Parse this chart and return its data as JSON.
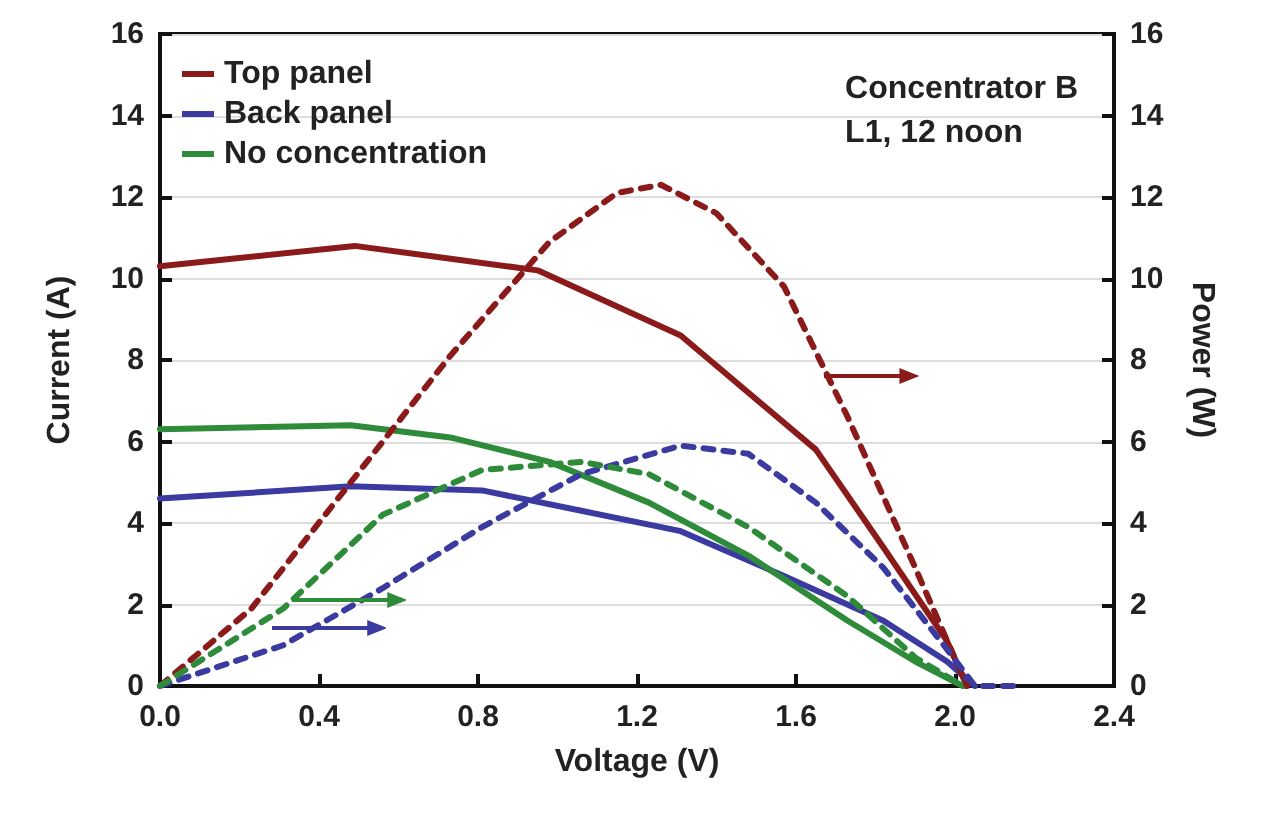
{
  "chart_data": {
    "type": "line",
    "xlabel": "Voltage (V)",
    "ylabel": "Current (A)",
    "y2label": "Power (W)",
    "annotations": [
      "Concentrator B",
      "L1, 12 noon"
    ],
    "xlim": [
      0,
      2.4
    ],
    "xticks": [
      {
        "value": 0,
        "label": "0.0"
      },
      {
        "value": 0.4,
        "label": "0.4"
      },
      {
        "value": 0.8,
        "label": "0.8"
      },
      {
        "value": 1.2,
        "label": "1.2"
      },
      {
        "value": 1.6,
        "label": "1.6"
      },
      {
        "value": 2.0,
        "label": "2.0"
      },
      {
        "value": 2.4,
        "label": "2.4"
      }
    ],
    "ylim": [
      0,
      16
    ],
    "yticks": [
      0,
      2,
      4,
      6,
      8,
      10,
      12,
      14,
      16
    ],
    "y2lim": [
      0,
      16
    ],
    "y2ticks": [
      0,
      2,
      4,
      6,
      8,
      10,
      12,
      14,
      16
    ],
    "grid": "y",
    "legend": "top left",
    "marker": "none",
    "series": [
      {
        "name": "Top panel",
        "color": "#8b1a1a",
        "line_style": "solid",
        "x": [
          0,
          0.49,
          0.95,
          1.31,
          1.65,
          1.82,
          1.98,
          2.03
        ],
        "values": [
          10.3,
          10.8,
          10.2,
          8.6,
          5.8,
          3.4,
          1.1,
          0
        ]
      },
      {
        "name": "Back panel",
        "color": "#3a3aa0",
        "line_style": "solid",
        "x": [
          0,
          0.48,
          0.81,
          1.06,
          1.31,
          1.57,
          1.82,
          1.98,
          2.05
        ],
        "values": [
          4.6,
          4.9,
          4.8,
          4.3,
          3.8,
          2.7,
          1.6,
          0.6,
          0
        ]
      },
      {
        "name": "No concentration",
        "color": "#2e8b3a",
        "line_style": "solid",
        "x": [
          0,
          0.48,
          0.73,
          0.98,
          1.23,
          1.48,
          1.73,
          1.9,
          2.02
        ],
        "values": [
          6.3,
          6.4,
          6.1,
          5.5,
          4.5,
          3.2,
          1.6,
          0.6,
          0
        ]
      },
      {
        "color": "#8b1a1a",
        "line_style": "dashed",
        "axis": "y2",
        "x": [
          0,
          0.23,
          0.48,
          0.73,
          0.98,
          1.15,
          1.26,
          1.4,
          1.57,
          1.73,
          1.9,
          2.03
        ],
        "values": [
          0,
          1.9,
          5.0,
          8.1,
          10.9,
          12.1,
          12.3,
          11.6,
          9.8,
          6.6,
          2.9,
          0
        ]
      },
      {
        "color": "#3a3aa0",
        "line_style": "dashed",
        "axis": "y2",
        "x": [
          0,
          0.31,
          0.56,
          0.81,
          1.06,
          1.31,
          1.48,
          1.65,
          1.82,
          1.98,
          2.05,
          2.15
        ],
        "values": [
          0,
          1.0,
          2.4,
          3.9,
          5.2,
          5.9,
          5.7,
          4.5,
          2.9,
          0.9,
          0,
          0
        ]
      },
      {
        "color": "#2e8b3a",
        "line_style": "dashed",
        "axis": "y2",
        "x": [
          0,
          0.31,
          0.56,
          0.81,
          1.06,
          1.23,
          1.48,
          1.73,
          1.9,
          2.02
        ],
        "values": [
          0,
          1.9,
          4.2,
          5.3,
          5.5,
          5.2,
          3.9,
          2.2,
          0.7,
          0
        ]
      }
    ]
  }
}
